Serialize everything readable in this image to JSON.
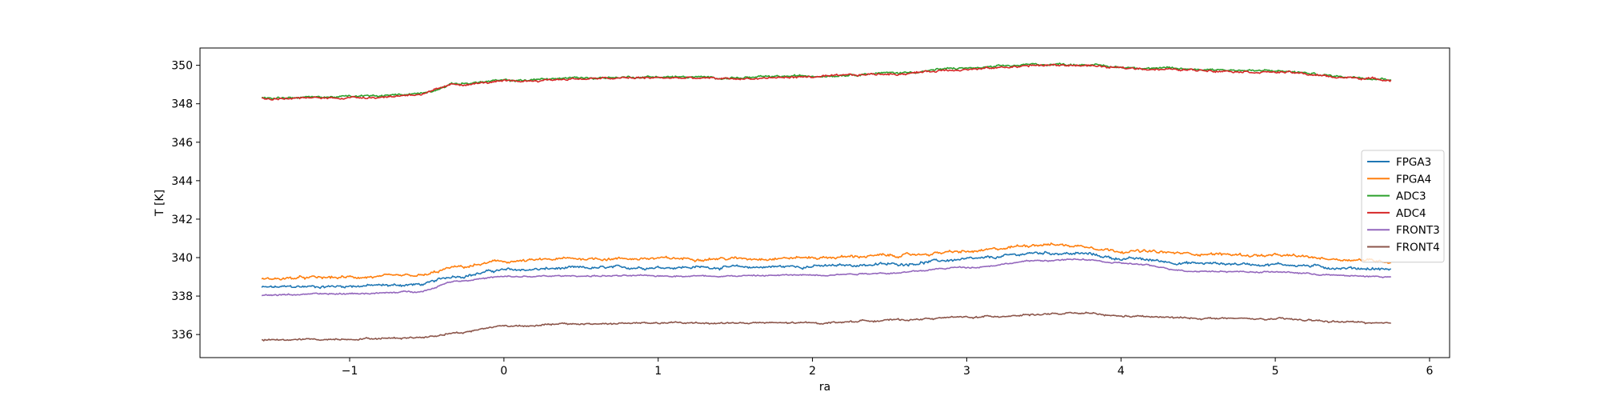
{
  "chart_data": {
    "type": "line",
    "title": "",
    "xlabel": "ra",
    "ylabel": "T [K]",
    "xlim": [
      -1.97,
      6.13
    ],
    "ylim": [
      334.8,
      350.9
    ],
    "xticks": [
      -1,
      0,
      1,
      2,
      3,
      4,
      5,
      6
    ],
    "xtick_labels": [
      "−1",
      "0",
      "1",
      "2",
      "3",
      "4",
      "5",
      "6"
    ],
    "yticks": [
      336,
      338,
      340,
      342,
      344,
      346,
      348,
      350
    ],
    "ytick_labels": [
      "336",
      "338",
      "340",
      "342",
      "344",
      "346",
      "348",
      "350"
    ],
    "grid": false,
    "legend_position": "center-right",
    "x": [
      -1.57,
      -1.2,
      -0.8,
      -0.55,
      -0.3,
      0,
      0.5,
      1,
      1.5,
      2,
      2.5,
      3,
      3.5,
      3.75,
      4,
      4.5,
      5,
      5.5,
      5.75
    ],
    "series": [
      {
        "name": "FPGA3",
        "color": "#1f77b4",
        "noise": 0.08,
        "values": [
          338.45,
          338.5,
          338.55,
          338.6,
          339.05,
          339.35,
          339.45,
          339.5,
          339.5,
          339.55,
          339.65,
          339.9,
          340.25,
          340.2,
          339.95,
          339.7,
          339.65,
          339.45,
          339.4
        ]
      },
      {
        "name": "FPGA4",
        "color": "#ff7f0e",
        "noise": 0.08,
        "values": [
          338.9,
          338.95,
          339.0,
          339.05,
          339.5,
          339.8,
          339.95,
          339.95,
          339.95,
          340.0,
          340.1,
          340.3,
          340.7,
          340.6,
          340.35,
          340.2,
          340.1,
          339.9,
          339.8
        ]
      },
      {
        "name": "ADC3",
        "color": "#2ca02c",
        "noise": 0.06,
        "values": [
          348.3,
          348.35,
          348.4,
          348.55,
          349.05,
          349.2,
          349.35,
          349.4,
          349.35,
          349.45,
          349.6,
          349.85,
          350.05,
          350.05,
          349.9,
          349.8,
          349.7,
          349.4,
          349.3
        ]
      },
      {
        "name": "ADC4",
        "color": "#d62728",
        "noise": 0.06,
        "values": [
          348.25,
          348.3,
          348.35,
          348.5,
          349.0,
          349.15,
          349.3,
          349.35,
          349.3,
          349.4,
          349.55,
          349.8,
          350.0,
          350.0,
          349.85,
          349.75,
          349.65,
          349.35,
          349.25
        ]
      },
      {
        "name": "FRONT3",
        "color": "#9467bd",
        "noise": 0.04,
        "values": [
          338.05,
          338.1,
          338.15,
          338.25,
          338.8,
          339.0,
          339.05,
          339.05,
          339.05,
          339.1,
          339.2,
          339.5,
          339.85,
          339.9,
          339.7,
          339.3,
          339.25,
          339.05,
          339.0
        ]
      },
      {
        "name": "FRONT4",
        "color": "#8c564b",
        "noise": 0.05,
        "values": [
          335.7,
          335.75,
          335.8,
          335.85,
          336.1,
          336.45,
          336.55,
          336.6,
          336.6,
          336.6,
          336.75,
          336.9,
          337.05,
          337.1,
          336.95,
          336.85,
          336.8,
          336.65,
          336.55
        ]
      }
    ]
  }
}
